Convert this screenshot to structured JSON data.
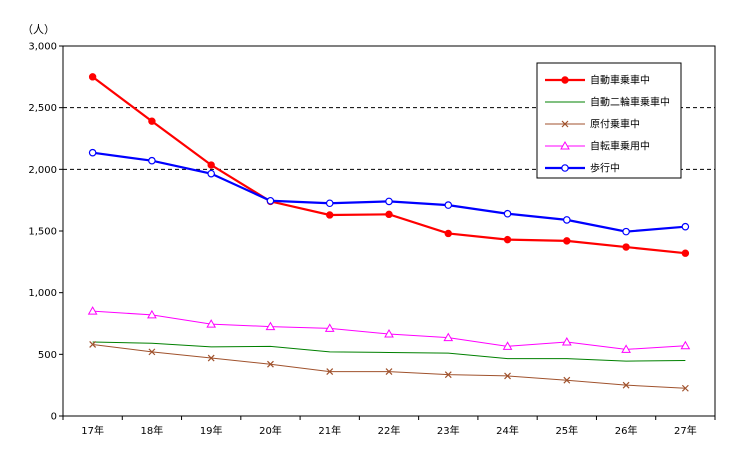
{
  "chart_data": {
    "type": "line",
    "unit_label": "（人）",
    "categories": [
      "17年",
      "18年",
      "19年",
      "20年",
      "21年",
      "22年",
      "23年",
      "24年",
      "25年",
      "26年",
      "27年"
    ],
    "ylim": [
      0,
      3000
    ],
    "yticks": [
      "0",
      "500",
      "1,000",
      "1,500",
      "2,000",
      "2,500",
      "3,000"
    ],
    "ytick_values": [
      0,
      500,
      1000,
      1500,
      2000,
      2500,
      3000
    ],
    "dashed_gridlines": [
      2000,
      2500
    ],
    "legend_position": "top-right",
    "series": [
      {
        "name": "自動車乗車中",
        "color": "#ff0000",
        "marker": "filled-circle",
        "values": [
          2750,
          2390,
          2035,
          1740,
          1630,
          1635,
          1480,
          1430,
          1420,
          1370,
          1320
        ]
      },
      {
        "name": "自動二輪車乗車中",
        "color": "#008000",
        "marker": "none",
        "values": [
          600,
          590,
          560,
          565,
          520,
          515,
          510,
          465,
          465,
          445,
          450
        ]
      },
      {
        "name": "原付乗車中",
        "color": "#a0522d",
        "marker": "x",
        "values": [
          580,
          520,
          470,
          420,
          360,
          360,
          335,
          325,
          290,
          250,
          225
        ]
      },
      {
        "name": "自転車乗用中",
        "color": "#ff00ff",
        "marker": "open-triangle",
        "values": [
          850,
          820,
          745,
          725,
          710,
          665,
          635,
          565,
          600,
          540,
          570
        ]
      },
      {
        "name": "歩行中",
        "color": "#0000ff",
        "marker": "open-circle",
        "values": [
          2135,
          2070,
          1965,
          1745,
          1725,
          1740,
          1710,
          1640,
          1590,
          1495,
          1535
        ]
      }
    ]
  }
}
